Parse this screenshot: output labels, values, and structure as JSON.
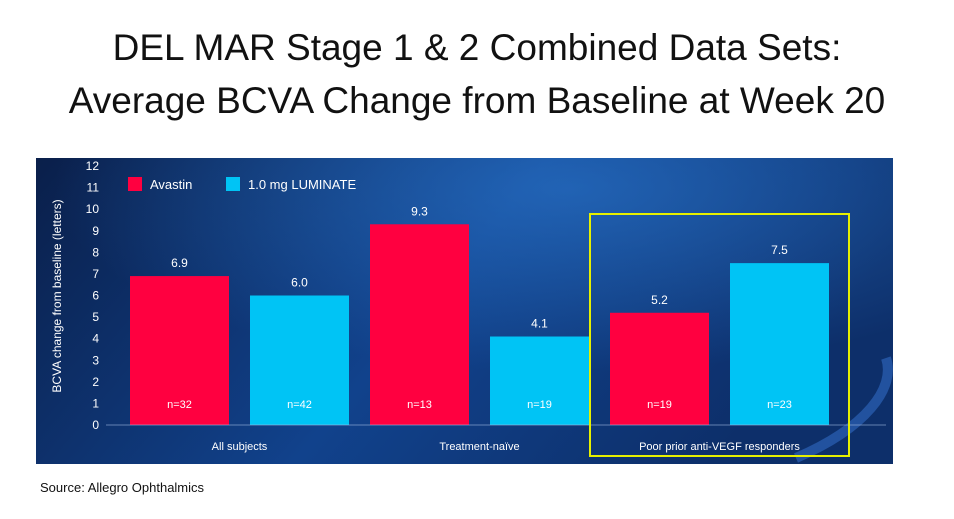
{
  "slide": {
    "title_line1": "DEL MAR Stage 1 & 2 Combined Data Sets:",
    "title_line2": "Average BCVA Change from Baseline at Week 20",
    "source": "Source: Allegro Ophthalmics"
  },
  "colors": {
    "avastin": "#ff0040",
    "luminate": "#00c4f5",
    "highlight_box": "#e6f000",
    "panel_dark": "#0a1f4a",
    "panel_mid": "#11428c",
    "text_light": "#ffffff"
  },
  "chart_data": {
    "type": "bar",
    "title": "",
    "xlabel": "",
    "ylabel": "BCVA change from baseline (letters)",
    "ylim": [
      0,
      12
    ],
    "yticks": [
      0,
      1,
      2,
      3,
      4,
      5,
      6,
      7,
      8,
      9,
      10,
      11,
      12
    ],
    "grid": false,
    "legend_position": "top-left",
    "categories": [
      "All subjects",
      "Treatment-naïve",
      "Poor prior anti-VEGF responders"
    ],
    "highlighted_category": "Poor prior anti-VEGF responders",
    "series": [
      {
        "name": "Avastin",
        "values": [
          6.9,
          9.3,
          5.2
        ],
        "value_labels": [
          "6.9",
          "9.3",
          "5.2"
        ],
        "n_labels": [
          "n=32",
          "n=13",
          "n=19"
        ]
      },
      {
        "name": "1.0 mg LUMINATE",
        "values": [
          6.0,
          4.1,
          7.5
        ],
        "value_labels": [
          "6.0",
          "4.1",
          "7.5"
        ],
        "n_labels": [
          "n=42",
          "n=19",
          "n=23"
        ]
      }
    ]
  }
}
